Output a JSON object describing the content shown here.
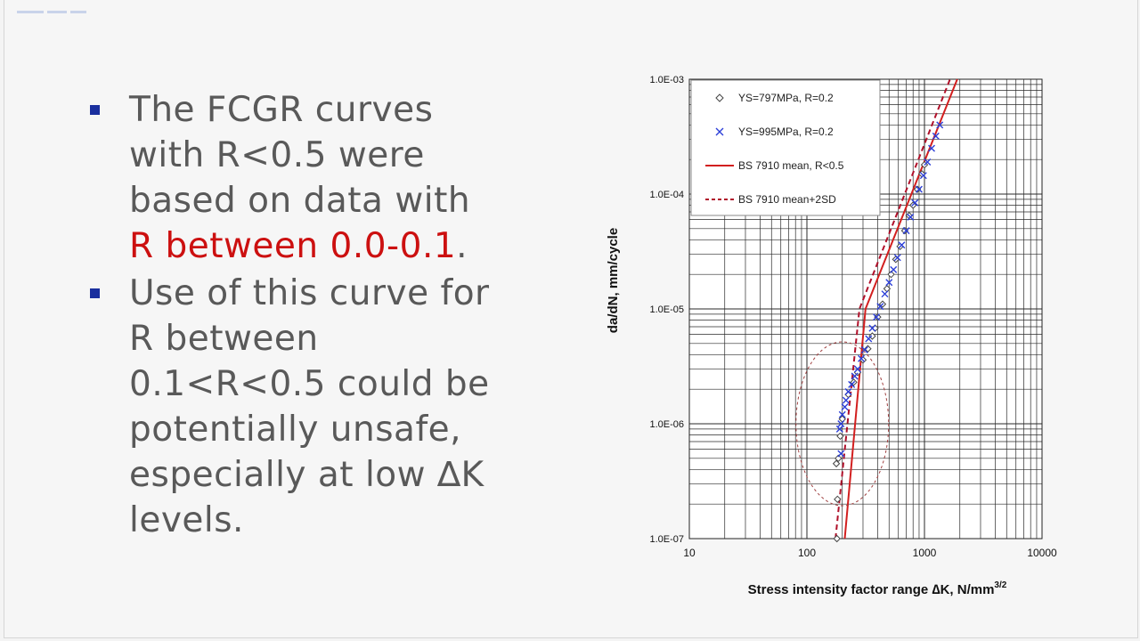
{
  "slide": {
    "bullets": [
      {
        "lines": [
          "The FCGR curves",
          "with R<0.5 were",
          "based on data with"
        ],
        "highlight": "R between 0.0-0.1",
        "tail": "."
      },
      {
        "lines": [
          "Use of this curve for",
          "R between",
          "0.1<R<0.5 could be",
          "potentially unsafe,",
          "especially at low ∆K",
          "levels."
        ]
      }
    ]
  },
  "colors": {
    "bullet": "#1a2f9e",
    "text": "#595959",
    "highlight": "#cc1010",
    "series_797": "#444444",
    "series_995": "#2c3fd8",
    "mean_line": "#d21f1f",
    "mean2sd_line": "#b0102a",
    "ellipse": "#a04040"
  },
  "chart_data": {
    "type": "scatter",
    "x_scale": "log",
    "y_scale": "log",
    "xlim": [
      10,
      10000
    ],
    "ylim": [
      1e-07,
      0.001
    ],
    "x_ticks": [
      "10",
      "100",
      "1000",
      "10000"
    ],
    "y_ticks": [
      "1.0E-07",
      "1.0E-06",
      "1.0E-05",
      "1.0E-04",
      "1.0E-03"
    ],
    "xlabel": "Stress intensity factor range ∆K, N/mm",
    "xlabel_sup": "3/2",
    "ylabel": "da/dN, mm/cycle",
    "grid": true,
    "legend_position": "top-left",
    "series": [
      {
        "name": "YS=797MPa, R=0.2",
        "marker": "diamond",
        "points": [
          [
            180,
            1e-07
          ],
          [
            182,
            2.2e-07
          ],
          [
            178,
            4.5e-07
          ],
          [
            185,
            5e-07
          ],
          [
            192,
            7.8e-07
          ],
          [
            200,
            1.1e-06
          ],
          [
            225,
            1.8e-06
          ],
          [
            250,
            2.3e-06
          ],
          [
            270,
            2.8e-06
          ],
          [
            300,
            3.6e-06
          ],
          [
            330,
            4.5e-06
          ],
          [
            360,
            5.8e-06
          ],
          [
            380,
            6.8e-06
          ],
          [
            400,
            8.5e-06
          ],
          [
            440,
            1.1e-05
          ],
          [
            480,
            1.5e-05
          ],
          [
            520,
            2e-05
          ],
          [
            570,
            2.7e-05
          ],
          [
            620,
            3.5e-05
          ],
          [
            680,
            4.8e-05
          ],
          [
            740,
            6.5e-05
          ],
          [
            800,
            8e-05
          ],
          [
            870,
            0.00011
          ],
          [
            950,
            0.00015
          ],
          [
            1000,
            0.00018
          ]
        ]
      },
      {
        "name": "YS=995MPa, R=0.2",
        "marker": "x",
        "points": [
          [
            190,
            9e-07
          ],
          [
            195,
            1e-06
          ],
          [
            200,
            1.2e-06
          ],
          [
            210,
            1.4e-06
          ],
          [
            215,
            1.6e-06
          ],
          [
            225,
            1.9e-06
          ],
          [
            240,
            2.2e-06
          ],
          [
            255,
            2.6e-06
          ],
          [
            270,
            3e-06
          ],
          [
            290,
            3.7e-06
          ],
          [
            310,
            4.4e-06
          ],
          [
            335,
            5.5e-06
          ],
          [
            360,
            6.8e-06
          ],
          [
            390,
            8.5e-06
          ],
          [
            420,
            1.05e-05
          ],
          [
            460,
            1.35e-05
          ],
          [
            500,
            1.7e-05
          ],
          [
            545,
            2.2e-05
          ],
          [
            590,
            2.8e-05
          ],
          [
            640,
            3.6e-05
          ],
          [
            700,
            4.8e-05
          ],
          [
            760,
            6.3e-05
          ],
          [
            830,
            8.4e-05
          ],
          [
            900,
            0.00011
          ],
          [
            980,
            0.000145
          ],
          [
            1060,
            0.00019
          ],
          [
            1150,
            0.00025
          ],
          [
            1250,
            0.00032
          ],
          [
            1350,
            0.0004
          ],
          [
            195,
            5.5e-07
          ]
        ]
      },
      {
        "name": "BS 7910 mean, R<0.5",
        "style": "solid",
        "points": [
          [
            210,
            1e-07
          ],
          [
            315,
            1e-05
          ],
          [
            1900,
            0.001
          ]
        ]
      },
      {
        "name": "BS 7910 mean+2SD",
        "style": "dashed",
        "points": [
          [
            175,
            1e-07
          ],
          [
            280,
            1e-05
          ],
          [
            1650,
            0.001
          ]
        ]
      }
    ],
    "annotations": [
      {
        "type": "ellipse",
        "style": "dashed",
        "cx": 200,
        "cy": 1e-06
      }
    ]
  }
}
